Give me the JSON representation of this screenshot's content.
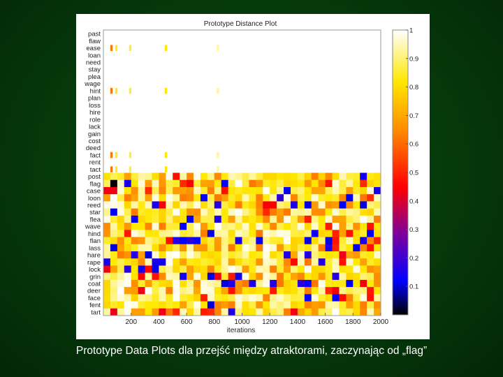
{
  "caption": "Prototype Data Plots  dla przejść między atraktorami, zaczynając od „flag”",
  "chart_data": {
    "type": "heatmap",
    "title": "Prototype Distance Plot",
    "xlabel": "iterations",
    "ylabel": "",
    "xlim": [
      0,
      2000
    ],
    "x_ticks": [
      200,
      400,
      600,
      800,
      1000,
      1200,
      1400,
      1600,
      1800,
      2000
    ],
    "rows": [
      "past",
      "flaw",
      "ease",
      "loan",
      "need",
      "stay",
      "plea",
      "wage",
      "hint",
      "plan",
      "loss",
      "hire",
      "role",
      "lack",
      "gain",
      "cost",
      "deed",
      "fact",
      "rent",
      "tact",
      "post",
      "flag",
      "case",
      "loon",
      "reed",
      "star",
      "flea",
      "wave",
      "hind",
      "flan",
      "lass",
      "hare",
      "rape",
      "lock",
      "grin",
      "coat",
      "deer",
      "face",
      "fent",
      "tart"
    ],
    "active_from_row": "tact",
    "colorbar": {
      "min": 0,
      "max": 1,
      "ticks": [
        0.1,
        0.2,
        0.3,
        0.4,
        0.5,
        0.6,
        0.7,
        0.8,
        0.9,
        1
      ],
      "tick_labels": [
        "0.1",
        "0.2",
        "0.3",
        "0.4",
        "0.5",
        "0.6",
        "0.7",
        "0.8",
        "0.9",
        "1"
      ],
      "colormap": "hot"
    }
  }
}
